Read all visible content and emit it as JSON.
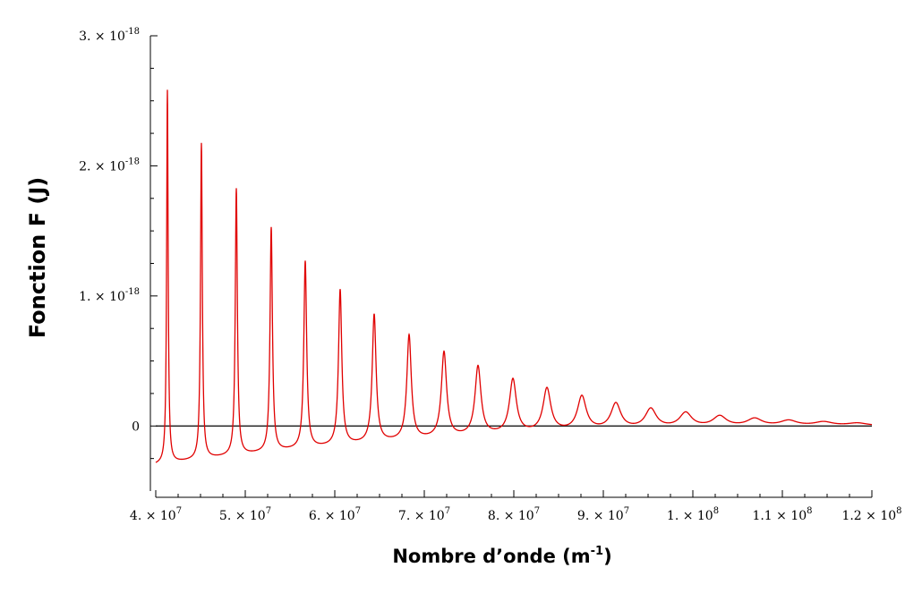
{
  "chart_data": {
    "type": "line",
    "xlabel": {
      "main": "Nombre d’onde (m",
      "sup": "-1",
      "end": ")"
    },
    "ylabel": "Fonction F (J)",
    "xlim": [
      40000000,
      120000000
    ],
    "ylim": [
      -5e-19,
      3e-18
    ],
    "grid": false,
    "legend": "none",
    "zero_line": true,
    "line_color": "#e00000",
    "baseline_color": "#000000",
    "x_ticks": [
      {
        "value": 40000000,
        "mantissa": "4. × 10",
        "exp": "7"
      },
      {
        "value": 50000000,
        "mantissa": "5. × 10",
        "exp": "7"
      },
      {
        "value": 60000000,
        "mantissa": "6. × 10",
        "exp": "7"
      },
      {
        "value": 70000000,
        "mantissa": "7. × 10",
        "exp": "7"
      },
      {
        "value": 80000000,
        "mantissa": "8. × 10",
        "exp": "7"
      },
      {
        "value": 90000000,
        "mantissa": "9. × 10",
        "exp": "7"
      },
      {
        "value": 100000000,
        "mantissa": "1. × 10",
        "exp": "8"
      },
      {
        "value": 110000000,
        "mantissa": "1.1 × 10",
        "exp": "8"
      },
      {
        "value": 120000000,
        "mantissa": "1.2 × 10",
        "exp": "8"
      }
    ],
    "y_ticks": [
      {
        "value": 0,
        "mantissa": "0",
        "exp": ""
      },
      {
        "value": 1e-18,
        "mantissa": "1. × 10",
        "exp": "-18"
      },
      {
        "value": 2e-18,
        "mantissa": "2. × 10",
        "exp": "-18"
      },
      {
        "value": 3e-18,
        "mantissa": "3. × 10",
        "exp": "-18"
      }
    ],
    "series": [
      {
        "x_start": 40000000,
        "baseline_min": -3e-19,
        "peaks": [
          {
            "x": 41300000,
            "y": 2.58e-18,
            "width": 100000
          },
          {
            "x": 45100000,
            "y": 2.17e-18,
            "width": 120000
          },
          {
            "x": 49000000,
            "y": 1.82e-18,
            "width": 140000
          },
          {
            "x": 52900000,
            "y": 1.52e-18,
            "width": 160000
          },
          {
            "x": 56700000,
            "y": 1.26e-18,
            "width": 190000
          },
          {
            "x": 60600000,
            "y": 1.04e-18,
            "width": 220000
          },
          {
            "x": 64400000,
            "y": 8.5e-19,
            "width": 260000
          },
          {
            "x": 68300000,
            "y": 6.9e-19,
            "width": 300000
          },
          {
            "x": 72200000,
            "y": 5.6e-19,
            "width": 350000
          },
          {
            "x": 76000000,
            "y": 4.5e-19,
            "width": 400000
          },
          {
            "x": 79900000,
            "y": 3.5e-19,
            "width": 460000
          },
          {
            "x": 83700000,
            "y": 2.8e-19,
            "width": 520000
          },
          {
            "x": 87600000,
            "y": 2.2e-19,
            "width": 590000
          },
          {
            "x": 91400000,
            "y": 1.65e-19,
            "width": 660000
          },
          {
            "x": 95300000,
            "y": 1.25e-19,
            "width": 740000
          },
          {
            "x": 99200000,
            "y": 9.5e-20,
            "width": 820000
          },
          {
            "x": 103000000,
            "y": 7e-20,
            "width": 900000
          },
          {
            "x": 106900000,
            "y": 5.2e-20,
            "width": 1000000
          },
          {
            "x": 110700000,
            "y": 3.8e-20,
            "width": 1100000
          },
          {
            "x": 114600000,
            "y": 2.8e-20,
            "width": 1200000
          },
          {
            "x": 118400000,
            "y": 2e-20,
            "width": 1300000
          }
        ]
      }
    ]
  }
}
